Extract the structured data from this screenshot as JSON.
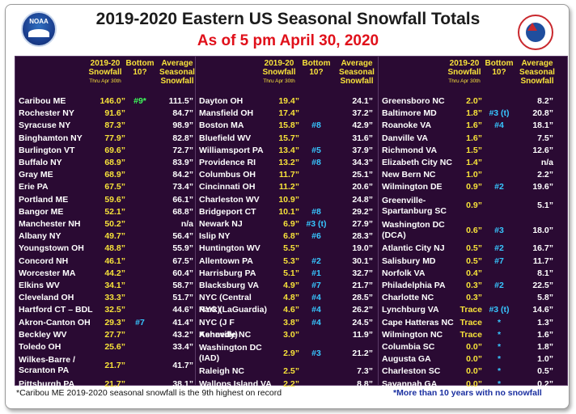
{
  "title": "2019-2020 Eastern US Seasonal Snowfall Totals",
  "subtitle": "As of 5 pm April 30, 2020",
  "logo_left_text": "NOAA",
  "logo_right_text": "NATIONAL WEATHER SERVICE",
  "headers": {
    "snowfall": "2019-20 Snowfall",
    "snowfall_sub": "Thru Apr 30th",
    "bottom": "Bottom 10?",
    "average": "Average Seasonal Snowfall"
  },
  "col1": [
    {
      "city": "Caribou ME",
      "snow": "146.0”",
      "rank": "#9*",
      "avg": "111.5”"
    },
    {
      "city": "Rochester NY",
      "snow": "91.6”",
      "rank": "",
      "avg": "84.7”"
    },
    {
      "city": "Syracuse NY",
      "snow": "87.3”",
      "rank": "",
      "avg": "98.9”"
    },
    {
      "city": "Binghamton NY",
      "snow": "77.9”",
      "rank": "",
      "avg": "82.8”"
    },
    {
      "city": "Burlington VT",
      "snow": "69.6”",
      "rank": "",
      "avg": "72.7”"
    },
    {
      "city": "Buffalo NY",
      "snow": "68.9”",
      "rank": "",
      "avg": "83.9”"
    },
    {
      "city": "Gray ME",
      "snow": "68.9”",
      "rank": "",
      "avg": "84.2”"
    },
    {
      "city": "Erie PA",
      "snow": "67.5”",
      "rank": "",
      "avg": "73.4”"
    },
    {
      "city": "Portland ME",
      "snow": "59.6”",
      "rank": "",
      "avg": "66.1”"
    },
    {
      "city": "Bangor ME",
      "snow": "52.1”",
      "rank": "",
      "avg": "68.8”"
    },
    {
      "city": "Manchester NH",
      "snow": "50.2”",
      "rank": "",
      "avg": "n/a"
    },
    {
      "city": "Albany NY",
      "snow": "49.7”",
      "rank": "",
      "avg": "56.4”"
    },
    {
      "city": "Youngstown OH",
      "snow": "48.8”",
      "rank": "",
      "avg": "55.9”"
    },
    {
      "city": "Concord NH",
      "snow": "46.1”",
      "rank": "",
      "avg": "67.5”"
    },
    {
      "city": "Worcester MA",
      "snow": "44.2”",
      "rank": "",
      "avg": "60.4”"
    },
    {
      "city": "Elkins WV",
      "snow": "34.1”",
      "rank": "",
      "avg": "58.7”"
    },
    {
      "city": "Cleveland OH",
      "snow": "33.3”",
      "rank": "",
      "avg": "51.7”"
    },
    {
      "city": "Hartford CT – BDL",
      "snow": "32.5”",
      "rank": "",
      "avg": "44.6”"
    },
    {
      "city": "Akron-Canton OH",
      "snow": "29.3”",
      "rank": "#7",
      "avg": "41.4”"
    },
    {
      "city": "Beckley WV",
      "snow": "27.7”",
      "rank": "",
      "avg": "43.2”"
    },
    {
      "city": "Toledo OH",
      "snow": "25.6”",
      "rank": "",
      "avg": "33.4”"
    },
    {
      "city": "Wilkes-Barre / Scranton PA",
      "snow": "21.7”",
      "rank": "",
      "avg": "41.7”",
      "tall": true
    },
    {
      "city": "Pittsburgh PA",
      "snow": "21.7”",
      "rank": "",
      "avg": "38.1”"
    }
  ],
  "col2": [
    {
      "city": "Dayton OH",
      "snow": "19.4”",
      "rank": "",
      "avg": "24.1”"
    },
    {
      "city": "Mansfield OH",
      "snow": "17.4”",
      "rank": "",
      "avg": "37.2”"
    },
    {
      "city": "Boston MA",
      "snow": "15.8”",
      "rank": "#8",
      "avg": "42.9”"
    },
    {
      "city": "Bluefield WV",
      "snow": "15.7”",
      "rank": "",
      "avg": "31.6”"
    },
    {
      "city": "Williamsport PA",
      "snow": "13.4”",
      "rank": "#5",
      "avg": "37.9”"
    },
    {
      "city": "Providence RI",
      "snow": "13.2”",
      "rank": "#8",
      "avg": "34.3”"
    },
    {
      "city": "Columbus OH",
      "snow": "11.7”",
      "rank": "",
      "avg": "25.1”"
    },
    {
      "city": "Cincinnati OH",
      "snow": "11.2”",
      "rank": "",
      "avg": "20.6”"
    },
    {
      "city": "Charleston WV",
      "snow": "10.9”",
      "rank": "",
      "avg": "24.8”"
    },
    {
      "city": "Bridgeport CT",
      "snow": "10.1”",
      "rank": "#8",
      "avg": "29.2”"
    },
    {
      "city": "Newark NJ",
      "snow": "6.9”",
      "rank": "#3 (t)",
      "avg": "27.9”"
    },
    {
      "city": "Islip NY",
      "snow": "6.8”",
      "rank": "#6",
      "avg": "28.3”"
    },
    {
      "city": "Huntington WV",
      "snow": "5.5”",
      "rank": "",
      "avg": "19.0”"
    },
    {
      "city": "Allentown PA",
      "snow": "5.3”",
      "rank": "#2",
      "avg": "30.1”"
    },
    {
      "city": "Harrisburg PA",
      "snow": "5.1”",
      "rank": "#1",
      "avg": "32.7”"
    },
    {
      "city": "Blacksburg VA",
      "snow": "4.9”",
      "rank": "#7",
      "avg": "21.7”"
    },
    {
      "city": "NYC (Central Park)",
      "snow": "4.8”",
      "rank": "#4",
      "avg": "28.5”"
    },
    {
      "city": "NYC (LaGuardia)",
      "snow": "4.6”",
      "rank": "#4",
      "avg": "26.2”"
    },
    {
      "city": "NYC (J F Kennedy)",
      "snow": "3.8”",
      "rank": "#4",
      "avg": "24.5”"
    },
    {
      "city": "Asheville NC",
      "snow": "3.0”",
      "rank": "",
      "avg": "11.9”"
    },
    {
      "city": "Washington DC (IAD)",
      "snow": "2.9”",
      "rank": "#3",
      "avg": "21.2”",
      "tall": true
    },
    {
      "city": "Raleigh NC",
      "snow": "2.5”",
      "rank": "",
      "avg": "7.3”"
    },
    {
      "city": "Wallops Island VA",
      "snow": "2.2”",
      "rank": "",
      "avg": "8.8”"
    }
  ],
  "col3": [
    {
      "city": "Greensboro NC",
      "snow": "2.0”",
      "rank": "",
      "avg": "8.2”"
    },
    {
      "city": "Baltimore MD",
      "snow": "1.8”",
      "rank": "#3 (t)",
      "avg": "20.8”"
    },
    {
      "city": "Roanoke VA",
      "snow": "1.6”",
      "rank": "#4",
      "avg": "18.1”"
    },
    {
      "city": "Danville VA",
      "snow": "1.6”",
      "rank": "",
      "avg": "7.5”"
    },
    {
      "city": "Richmond VA",
      "snow": "1.5”",
      "rank": "",
      "avg": "12.6”"
    },
    {
      "city": "Elizabeth City NC",
      "snow": "1.4”",
      "rank": "",
      "avg": "n/a"
    },
    {
      "city": "New Bern NC",
      "snow": "1.0”",
      "rank": "",
      "avg": "2.2”"
    },
    {
      "city": "Wilmington DE",
      "snow": "0.9”",
      "rank": "#2",
      "avg": "19.6”"
    },
    {
      "city": "Greenville-Spartanburg SC",
      "snow": "0.9”",
      "rank": "",
      "avg": "5.1”",
      "tall": true
    },
    {
      "city": "Washington DC (DCA)",
      "snow": "0.6”",
      "rank": "#3",
      "avg": "18.0”",
      "tall": true
    },
    {
      "city": "Atlantic City NJ",
      "snow": "0.5”",
      "rank": "#2",
      "avg": "16.7”"
    },
    {
      "city": "Salisbury MD",
      "snow": "0.5”",
      "rank": "#7",
      "avg": "11.7”"
    },
    {
      "city": "Norfolk VA",
      "snow": "0.4”",
      "rank": "",
      "avg": "8.1”"
    },
    {
      "city": "Philadelphia PA",
      "snow": "0.3”",
      "rank": "#2",
      "avg": "22.5”"
    },
    {
      "city": "Charlotte NC",
      "snow": "0.3”",
      "rank": "",
      "avg": "5.8”"
    },
    {
      "city": "Lynchburg VA",
      "snow": "Trace",
      "rank": "#3 (t)",
      "avg": "14.6”"
    },
    {
      "city": "Cape Hatteras NC",
      "snow": "Trace",
      "rank": "*",
      "avg": "1.3”"
    },
    {
      "city": "Wilmington NC",
      "snow": "Trace",
      "rank": "*",
      "avg": "1.6”"
    },
    {
      "city": "Columbia SC",
      "snow": "0.0”",
      "rank": "*",
      "avg": "1.8”"
    },
    {
      "city": "Augusta GA",
      "snow": "0.0”",
      "rank": "*",
      "avg": "1.0”"
    },
    {
      "city": "Charleston SC",
      "snow": "0.0”",
      "rank": "*",
      "avg": "0.5”"
    },
    {
      "city": "Savannah GA",
      "snow": "0.0”",
      "rank": "*",
      "avg": "0.2”"
    }
  ],
  "footnote_left": "*Caribou ME 2019-2020 seasonal snowfall is the 9th highest on record",
  "footnote_right": "*More than 10 years with no snowfall"
}
